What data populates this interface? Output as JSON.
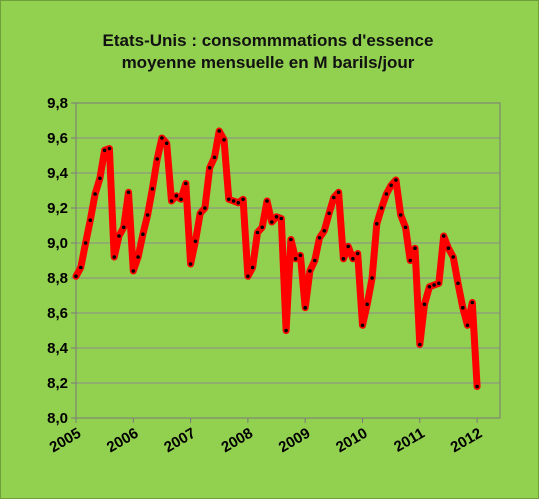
{
  "chart_data": {
    "type": "line",
    "title_lines": [
      "Etats-Unis : consommmations d'essence",
      "moyenne mensuelle en M barils/jour"
    ],
    "ylim": [
      8.0,
      9.8
    ],
    "y_ticks": [
      "8,0",
      "8,2",
      "8,4",
      "8,6",
      "8,8",
      "9,0",
      "9,2",
      "9,4",
      "9,6",
      "9,8"
    ],
    "y_tick_values": [
      8.0,
      8.2,
      8.4,
      8.6,
      8.8,
      9.0,
      9.2,
      9.4,
      9.6,
      9.8
    ],
    "x_ticks": [
      "2005",
      "2006",
      "2007",
      "2008",
      "2009",
      "2010",
      "2011",
      "2012"
    ],
    "x_tick_values": [
      2005,
      2006,
      2007,
      2008,
      2009,
      2010,
      2011,
      2012
    ],
    "xlim": [
      2005,
      2012.4
    ],
    "grid": "horizontal",
    "line_color": "#ff0000",
    "marker_color": "#000000",
    "x": [
      2005.0,
      2005.083,
      2005.167,
      2005.25,
      2005.333,
      2005.417,
      2005.5,
      2005.583,
      2005.667,
      2005.75,
      2005.833,
      2005.917,
      2006.0,
      2006.083,
      2006.167,
      2006.25,
      2006.333,
      2006.417,
      2006.5,
      2006.583,
      2006.667,
      2006.75,
      2006.833,
      2006.917,
      2007.0,
      2007.083,
      2007.167,
      2007.25,
      2007.333,
      2007.417,
      2007.5,
      2007.583,
      2007.667,
      2007.75,
      2007.833,
      2007.917,
      2008.0,
      2008.083,
      2008.167,
      2008.25,
      2008.333,
      2008.417,
      2008.5,
      2008.583,
      2008.667,
      2008.75,
      2008.833,
      2008.917,
      2009.0,
      2009.083,
      2009.167,
      2009.25,
      2009.333,
      2009.417,
      2009.5,
      2009.583,
      2009.667,
      2009.75,
      2009.833,
      2009.917,
      2010.0,
      2010.083,
      2010.167,
      2010.25,
      2010.333,
      2010.417,
      2010.5,
      2010.583,
      2010.667,
      2010.75,
      2010.833,
      2010.917,
      2011.0,
      2011.083,
      2011.167,
      2011.25,
      2011.333,
      2011.417,
      2011.5,
      2011.583,
      2011.667,
      2011.75,
      2011.833,
      2011.917,
      2012.0
    ],
    "y": [
      8.81,
      8.86,
      9.0,
      9.13,
      9.28,
      9.37,
      9.53,
      9.54,
      8.92,
      9.04,
      9.09,
      9.29,
      8.84,
      8.92,
      9.05,
      9.16,
      9.31,
      9.48,
      9.6,
      9.57,
      9.24,
      9.27,
      9.25,
      9.34,
      8.88,
      9.01,
      9.17,
      9.2,
      9.43,
      9.49,
      9.64,
      9.59,
      9.25,
      9.24,
      9.23,
      9.25,
      8.81,
      8.86,
      9.06,
      9.09,
      9.24,
      9.12,
      9.15,
      9.14,
      8.5,
      9.02,
      8.91,
      8.93,
      8.63,
      8.84,
      8.9,
      9.03,
      9.07,
      9.17,
      9.26,
      9.29,
      8.91,
      8.98,
      8.91,
      8.94,
      8.53,
      8.65,
      8.8,
      9.11,
      9.2,
      9.28,
      9.33,
      9.36,
      9.16,
      9.09,
      8.9,
      8.97,
      8.42,
      8.65,
      8.75,
      8.76,
      8.77,
      9.04,
      8.97,
      8.92,
      8.77,
      8.63,
      8.53,
      8.66,
      8.18
    ]
  }
}
